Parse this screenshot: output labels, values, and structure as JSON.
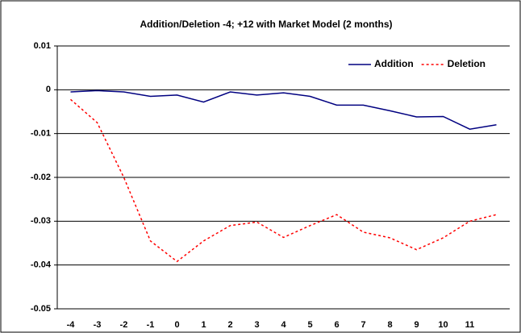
{
  "chart_data": {
    "type": "line",
    "title": "Addition/Deletion -4; +12 with Market Model (2 months)",
    "categories": [
      "-4",
      "-3",
      "-2",
      "-1",
      "0",
      "1",
      "2",
      "3",
      "4",
      "5",
      "6",
      "7",
      "8",
      "9",
      "10",
      "11",
      null
    ],
    "series": [
      {
        "name": "Addition",
        "color": "#000080",
        "dash": "solid",
        "values": [
          -0.0005,
          -0.0002,
          -0.0005,
          -0.0015,
          -0.0012,
          -0.0028,
          -0.0005,
          -0.0012,
          -0.0007,
          -0.0015,
          -0.0035,
          -0.0035,
          -0.0048,
          -0.0062,
          -0.0061,
          -0.009,
          -0.008
        ]
      },
      {
        "name": "Deletion",
        "color": "#ff0000",
        "dash": "dotted",
        "values": [
          -0.0022,
          -0.0075,
          -0.02,
          -0.0345,
          -0.0392,
          -0.0345,
          -0.031,
          -0.0302,
          -0.0337,
          -0.031,
          -0.0285,
          -0.0325,
          -0.0338,
          -0.0365,
          -0.0338,
          -0.03,
          -0.0285
        ]
      }
    ],
    "ylim": [
      -0.05,
      0.01
    ],
    "yticks": [
      0.01,
      0,
      -0.01,
      -0.02,
      -0.03,
      -0.04,
      -0.05
    ],
    "grid": true,
    "legend": "top-right"
  }
}
